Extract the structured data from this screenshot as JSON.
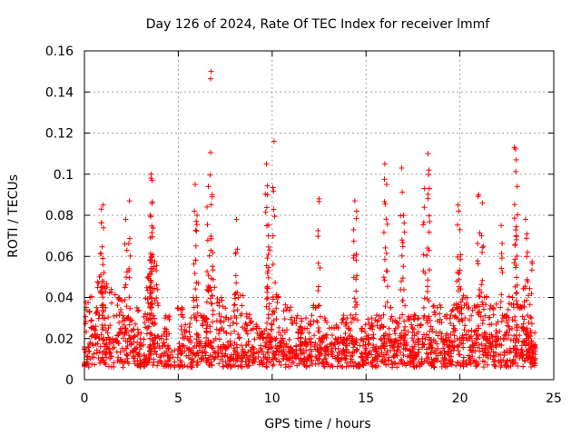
{
  "chart_data": {
    "type": "scatter",
    "title": "Day 126 of 2024, Rate Of TEC Index for receiver lmmf",
    "xlabel": "GPS time / hours",
    "ylabel": "ROTI / TECUs",
    "xlim": [
      0,
      25
    ],
    "ylim": [
      0,
      0.16
    ],
    "x_ticks": [
      0,
      5,
      10,
      15,
      20,
      25
    ],
    "x_tick_labels": [
      "0",
      "5",
      "10",
      "15",
      "20",
      "25"
    ],
    "y_ticks": [
      0,
      0.02,
      0.04,
      0.06,
      0.08,
      0.1,
      0.12,
      0.14,
      0.16
    ],
    "y_tick_labels": [
      "0",
      "0.02",
      "0.04",
      "0.06",
      "0.08",
      "0.1",
      "0.12",
      "0.14",
      "0.16"
    ],
    "grid": true,
    "marker": "+",
    "colors": {
      "series": "#ff0000",
      "grid": "#a0a0a0",
      "frame": "#000000"
    },
    "series": [
      {
        "name": "ROTI",
        "x": [
          0.0,
          0.5,
          1.0,
          1.5,
          2.0,
          2.5,
          3.0,
          3.5,
          4.0,
          4.5,
          5.0,
          5.5,
          6.0,
          6.5,
          7.0,
          7.5,
          8.0,
          8.5,
          9.0,
          9.5,
          10.0,
          10.5,
          11.0,
          11.5,
          12.0,
          12.5,
          13.0,
          13.5,
          14.0,
          14.5,
          15.0,
          15.5,
          16.0,
          16.5,
          17.0,
          17.5,
          18.0,
          18.5,
          19.0,
          19.5,
          20.0,
          20.5,
          21.0,
          21.5,
          22.0,
          22.5,
          23.0,
          23.5,
          24.0,
          0.3,
          0.8,
          1.2,
          1.8,
          2.3,
          2.8,
          3.4,
          3.6,
          3.7,
          4.3,
          5.2,
          5.8,
          6.3,
          6.7,
          7.3,
          7.8,
          8.2,
          8.8,
          9.3,
          9.8,
          10.3,
          10.8,
          11.3,
          11.8,
          12.3,
          12.8,
          13.3,
          13.8,
          14.3,
          14.8,
          15.3,
          15.8,
          16.3,
          16.8,
          17.3,
          17.8,
          18.3,
          18.8,
          19.3,
          19.8,
          20.3,
          20.8,
          21.3,
          21.8,
          22.3,
          22.8,
          23.3,
          23.8,
          0.9,
          1.0,
          2.2,
          2.4,
          3.5,
          3.55,
          3.6,
          5.9,
          6.0,
          6.6,
          6.8,
          8.1,
          9.7,
          9.75,
          9.8,
          10.1,
          12.5,
          14.4,
          14.5,
          16.0,
          16.1,
          16.9,
          17.0,
          18.1,
          18.3,
          18.35,
          19.9,
          20.0,
          21.0,
          21.2,
          22.2,
          22.9,
          23.0,
          23.05,
          23.5,
          23.6,
          6.75
        ],
        "y": [
          0.015,
          0.025,
          0.03,
          0.02,
          0.025,
          0.02,
          0.018,
          0.03,
          0.02,
          0.015,
          0.015,
          0.02,
          0.018,
          0.025,
          0.02,
          0.015,
          0.018,
          0.012,
          0.015,
          0.02,
          0.02,
          0.018,
          0.015,
          0.02,
          0.018,
          0.02,
          0.015,
          0.02,
          0.02,
          0.018,
          0.02,
          0.015,
          0.02,
          0.018,
          0.02,
          0.015,
          0.02,
          0.018,
          0.02,
          0.022,
          0.02,
          0.02,
          0.025,
          0.02,
          0.02,
          0.02,
          0.02,
          0.018,
          0.015,
          0.04,
          0.05,
          0.045,
          0.04,
          0.03,
          0.035,
          0.05,
          0.06,
          0.055,
          0.03,
          0.035,
          0.04,
          0.03,
          0.045,
          0.04,
          0.03,
          0.04,
          0.03,
          0.025,
          0.03,
          0.04,
          0.035,
          0.03,
          0.03,
          0.035,
          0.03,
          0.025,
          0.03,
          0.03,
          0.025,
          0.03,
          0.03,
          0.035,
          0.03,
          0.03,
          0.03,
          0.03,
          0.035,
          0.03,
          0.035,
          0.04,
          0.035,
          0.04,
          0.035,
          0.03,
          0.04,
          0.035,
          0.03,
          0.083,
          0.085,
          0.078,
          0.087,
          0.08,
          0.1,
          0.097,
          0.095,
          0.08,
          0.094,
          0.09,
          0.078,
          0.105,
          0.09,
          0.07,
          0.116,
          0.088,
          0.087,
          0.082,
          0.105,
          0.095,
          0.103,
          0.08,
          0.093,
          0.11,
          0.102,
          0.085,
          0.073,
          0.09,
          0.086,
          0.075,
          0.113,
          0.107,
          0.094,
          0.078,
          0.062,
          0.15
        ]
      }
    ]
  }
}
